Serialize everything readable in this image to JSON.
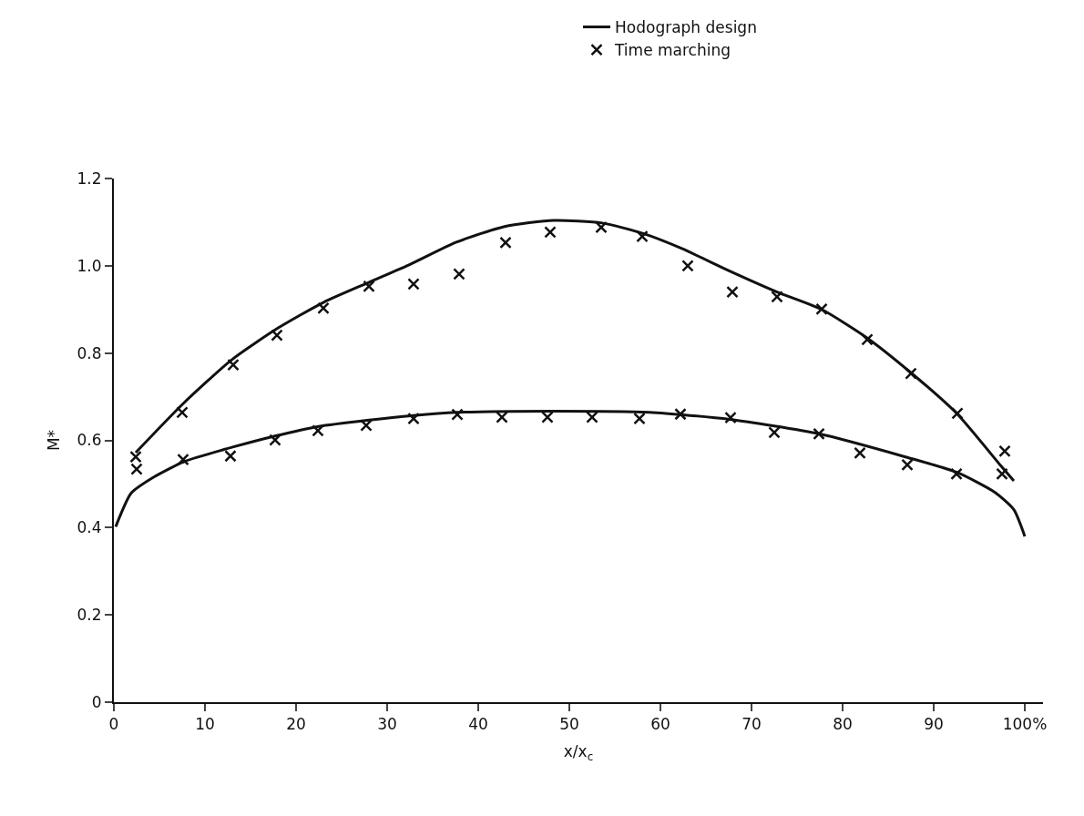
{
  "chart_data": {
    "type": "line",
    "xlabel": "x/x$_{c}$",
    "ylabel": "M*",
    "xlim": [
      0,
      102
    ],
    "xticks": [
      0,
      10,
      20,
      30,
      40,
      50,
      60,
      70,
      80,
      90,
      {
        "value": 100,
        "label": "100%"
      }
    ],
    "ylim": [
      0,
      1.2
    ],
    "yticks": [
      0,
      0.2,
      0.4,
      0.6,
      0.8,
      {
        "value": 1.0,
        "label": "1.0"
      },
      1.2
    ],
    "grid": false,
    "legend": "top right",
    "series": [
      {
        "name": "Hodograph design",
        "color": "#111111",
        "marker": "none",
        "line_style": "solid",
        "x": [
          2.4,
          7.5,
          12.9,
          18.0,
          23.1,
          28.0,
          32.4,
          37.6,
          42.9,
          48.3,
          53.6,
          58.1,
          62.3,
          67.6,
          72.8,
          77.7,
          82.6,
          87.5,
          92.6,
          97.4,
          98.8
        ],
        "values": [
          0.572,
          0.682,
          0.784,
          0.857,
          0.917,
          0.962,
          1.002,
          1.054,
          1.09,
          1.104,
          1.098,
          1.074,
          1.04,
          0.988,
          0.94,
          0.9,
          0.836,
          0.755,
          0.66,
          0.541,
          0.507
        ]
      },
      {
        "color": "#111111",
        "marker": "none",
        "line_style": "solid",
        "x": [
          0.2,
          1.9,
          4.4,
          7.8,
          12.1,
          17.7,
          22.5,
          27.8,
          32.9,
          37.6,
          48.3,
          58.8,
          67.6,
          77.4,
          86.9,
          92.5,
          96.7,
          98.8,
          100.0
        ],
        "values": [
          0.402,
          0.479,
          0.516,
          0.552,
          0.579,
          0.61,
          0.632,
          0.646,
          0.657,
          0.664,
          0.667,
          0.664,
          0.648,
          0.615,
          0.562,
          0.527,
          0.481,
          0.441,
          0.38
        ]
      },
      {
        "name": "Time marching",
        "type": "scatter",
        "color": "#111111",
        "marker": "cross",
        "x": [
          2.4,
          7.5,
          13.1,
          17.9,
          23.0,
          28.0,
          32.9,
          37.9,
          43.0,
          47.9,
          53.5,
          58.0,
          63.0,
          67.9,
          72.8,
          77.7,
          82.7,
          87.5,
          92.6,
          97.8,
          2.5,
          7.6,
          12.8,
          17.7,
          22.4,
          27.7,
          32.9,
          37.7,
          42.6,
          47.6,
          52.5,
          57.7,
          62.2,
          67.7,
          72.5,
          77.4,
          81.9,
          87.1,
          92.5,
          97.5
        ],
        "values": [
          0.562,
          0.664,
          0.773,
          0.841,
          0.903,
          0.953,
          0.958,
          0.981,
          1.053,
          1.077,
          1.088,
          1.067,
          1.0,
          0.94,
          0.929,
          0.901,
          0.831,
          0.753,
          0.662,
          0.575,
          0.534,
          0.556,
          0.564,
          0.601,
          0.622,
          0.634,
          0.65,
          0.659,
          0.653,
          0.653,
          0.653,
          0.65,
          0.66,
          0.652,
          0.618,
          0.615,
          0.571,
          0.544,
          0.523,
          0.523
        ]
      }
    ]
  }
}
